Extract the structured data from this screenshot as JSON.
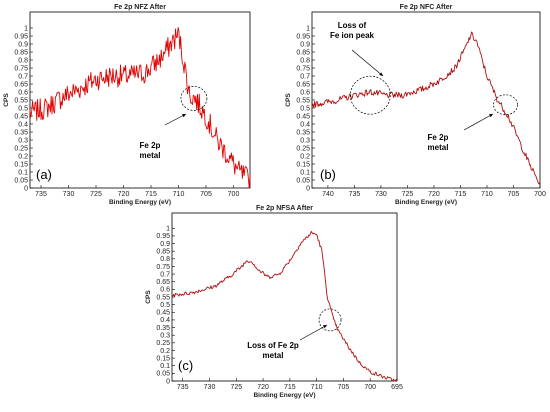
{
  "chart_data": [
    {
      "type": "line",
      "panel_label": "(a)",
      "title": "Fe 2p NFZ After",
      "xlabel": "Binding Energy (eV)",
      "ylabel": "CPS",
      "xlim": [
        737,
        697
      ],
      "ylim": [
        0,
        1.1
      ],
      "xticks": [
        735,
        730,
        725,
        720,
        715,
        710,
        705,
        700
      ],
      "yticks": [
        "0",
        "0.05",
        "0.1",
        "0.15",
        "0.2",
        "0.25",
        "0.3",
        "0.35",
        "0.4",
        "0.45",
        "0.5",
        "0.55",
        "0.6",
        "0.65",
        "0.7",
        "0.75",
        "0.8",
        "0.85",
        "0.9",
        "0.95",
        "1"
      ],
      "noise": 0.07,
      "series": [
        {
          "color": "#e00000",
          "x": [
            737,
            734,
            731,
            728,
            725,
            722,
            719,
            716,
            713,
            711,
            710,
            709,
            708,
            707,
            705,
            703,
            701,
            699,
            697
          ],
          "y": [
            0.47,
            0.5,
            0.57,
            0.62,
            0.68,
            0.7,
            0.7,
            0.72,
            0.82,
            0.92,
            0.96,
            0.78,
            0.58,
            0.56,
            0.45,
            0.3,
            0.2,
            0.1,
            0.05
          ]
        }
      ],
      "annotations": [
        {
          "lines": [
            "Fe 2p",
            "metal"
          ],
          "circle_x": 707.2,
          "circle_y": 0.56
        }
      ]
    },
    {
      "type": "line",
      "panel_label": "(b)",
      "title": "Fe 2p NFC After",
      "xlabel": "Binding Energy (eV)",
      "ylabel": "CPS",
      "xlim": [
        743,
        700
      ],
      "ylim": [
        0,
        1.1
      ],
      "xticks": [
        740,
        735,
        730,
        725,
        720,
        715,
        710,
        705,
        700
      ],
      "yticks": [
        "0",
        "0.05",
        "0.1",
        "0.15",
        "0.2",
        "0.25",
        "0.3",
        "0.35",
        "0.4",
        "0.45",
        "0.5",
        "0.55",
        "0.6",
        "0.65",
        "0.7",
        "0.75",
        "0.8",
        "0.85",
        "0.9",
        "0.95",
        "1"
      ],
      "noise": 0.02,
      "series": [
        {
          "color": "#b01010",
          "x": [
            743,
            738,
            735,
            732,
            729,
            726,
            722,
            719,
            716,
            714,
            713,
            712,
            710,
            708,
            706,
            704,
            702,
            700
          ],
          "y": [
            0.52,
            0.55,
            0.58,
            0.6,
            0.58,
            0.58,
            0.62,
            0.67,
            0.75,
            0.88,
            0.96,
            0.92,
            0.7,
            0.55,
            0.45,
            0.3,
            0.15,
            0.02
          ]
        }
      ],
      "annotations": [
        {
          "lines": [
            "Loss of",
            "Fe ion peak"
          ],
          "circle_x": 732,
          "circle_y": 0.58
        },
        {
          "lines": [
            "Fe 2p",
            "metal"
          ],
          "circle_x": 706.5,
          "circle_y": 0.52
        }
      ]
    },
    {
      "type": "line",
      "panel_label": "(c)",
      "title": "Fe 2p NFSA After",
      "xlabel": "Binding Energy (eV)",
      "ylabel": "CPS",
      "xlim": [
        737,
        695
      ],
      "ylim": [
        0,
        1.1
      ],
      "xticks": [
        735,
        730,
        725,
        720,
        715,
        710,
        705,
        700,
        695
      ],
      "yticks": [
        "0",
        "0.05",
        "0.1",
        "0.15",
        "0.2",
        "0.25",
        "0.3",
        "0.35",
        "0.4",
        "0.45",
        "0.5",
        "0.55",
        "0.6",
        "0.65",
        "0.7",
        "0.75",
        "0.8",
        "0.85",
        "0.9",
        "0.95",
        "1"
      ],
      "noise": 0.012,
      "series": [
        {
          "color": "#b01010",
          "x": [
            737,
            733,
            729,
            726,
            724,
            723,
            722,
            721,
            719,
            717,
            715,
            713,
            711,
            710,
            709,
            708,
            707,
            706,
            704,
            702,
            700,
            697,
            695
          ],
          "y": [
            0.56,
            0.58,
            0.62,
            0.69,
            0.75,
            0.79,
            0.78,
            0.73,
            0.68,
            0.7,
            0.79,
            0.9,
            0.97,
            0.96,
            0.85,
            0.55,
            0.42,
            0.33,
            0.22,
            0.12,
            0.06,
            0.02,
            0.0
          ]
        }
      ],
      "annotations": [
        {
          "lines": [
            "Loss of Fe 2p",
            "metal"
          ],
          "circle_x": 707.5,
          "circle_y": 0.4
        }
      ]
    }
  ]
}
